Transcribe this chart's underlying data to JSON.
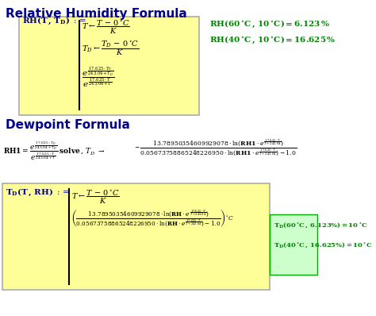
{
  "title1": "Relative Humidity Formula",
  "title2": "Dewpoint Formula",
  "bg_color": "#ffffff",
  "yellow_bg": "#ffff99",
  "green_text": "#008000",
  "blue_title": "#00008B",
  "dark_text": "#1a1a2e",
  "formula_text_color": "#000000",
  "fig_width": 4.74,
  "fig_height": 3.98,
  "dpi": 100
}
